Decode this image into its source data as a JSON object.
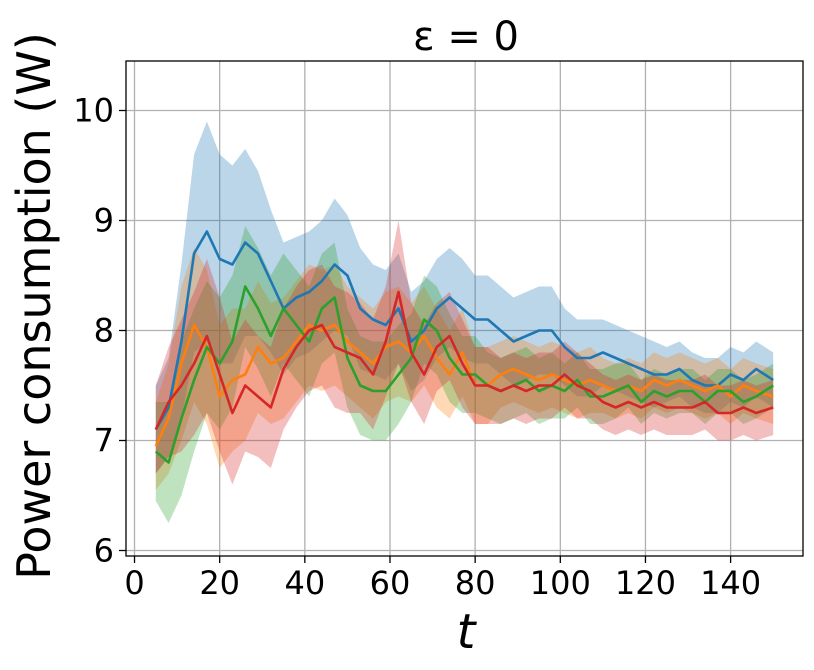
{
  "chart_data": {
    "type": "line",
    "title": "ε = 0",
    "xlabel": "t",
    "ylabel": "Power consumption (W)",
    "xlim": [
      -2,
      157
    ],
    "ylim": [
      5.95,
      10.45
    ],
    "xticks": [
      0,
      20,
      40,
      60,
      80,
      100,
      120,
      140
    ],
    "yticks": [
      6,
      7,
      8,
      9,
      10
    ],
    "grid": true,
    "legend": "none",
    "shaded_band": "min-max range per series (alpha ≈ 0.3)",
    "series": [
      {
        "color": "#1f77b4",
        "x": [
          5,
          8,
          11,
          14,
          17,
          20,
          23,
          26,
          29,
          32,
          35,
          38,
          41,
          44,
          47,
          50,
          53,
          56,
          59,
          62,
          65,
          68,
          71,
          74,
          77,
          80,
          83,
          86,
          89,
          92,
          95,
          98,
          101,
          104,
          107,
          110,
          113,
          116,
          119,
          122,
          125,
          128,
          131,
          134,
          137,
          140,
          143,
          146,
          150
        ],
        "y": [
          7.1,
          7.3,
          7.9,
          8.7,
          8.9,
          8.65,
          8.6,
          8.8,
          8.7,
          8.45,
          8.2,
          8.3,
          8.35,
          8.45,
          8.6,
          8.5,
          8.2,
          8.1,
          8.05,
          8.2,
          7.9,
          8.0,
          8.2,
          8.3,
          8.2,
          8.1,
          8.1,
          8.0,
          7.9,
          7.95,
          8.0,
          8.0,
          7.85,
          7.75,
          7.75,
          7.8,
          7.75,
          7.7,
          7.65,
          7.6,
          7.6,
          7.65,
          7.55,
          7.5,
          7.5,
          7.6,
          7.55,
          7.65,
          7.55
        ],
        "band_half_width": [
          0.4,
          0.45,
          0.7,
          0.9,
          1.0,
          0.95,
          0.9,
          0.85,
          0.75,
          0.65,
          0.6,
          0.55,
          0.55,
          0.55,
          0.6,
          0.55,
          0.55,
          0.5,
          0.5,
          0.5,
          0.45,
          0.45,
          0.45,
          0.45,
          0.45,
          0.4,
          0.4,
          0.4,
          0.4,
          0.4,
          0.4,
          0.4,
          0.35,
          0.35,
          0.35,
          0.3,
          0.3,
          0.3,
          0.3,
          0.3,
          0.25,
          0.25,
          0.25,
          0.25,
          0.25,
          0.25,
          0.25,
          0.25,
          0.25
        ]
      },
      {
        "color": "#ff7f0e",
        "x": [
          5,
          8,
          11,
          14,
          17,
          20,
          23,
          26,
          29,
          32,
          35,
          38,
          41,
          44,
          47,
          50,
          53,
          56,
          59,
          62,
          65,
          68,
          71,
          74,
          77,
          80,
          83,
          86,
          89,
          92,
          95,
          98,
          101,
          104,
          107,
          110,
          113,
          116,
          119,
          122,
          125,
          128,
          131,
          134,
          137,
          140,
          143,
          146,
          150
        ],
        "y": [
          6.95,
          7.2,
          7.7,
          8.05,
          7.85,
          7.4,
          7.55,
          7.6,
          7.85,
          7.7,
          7.75,
          7.9,
          8.05,
          8.0,
          8.05,
          7.9,
          7.8,
          7.7,
          7.85,
          7.9,
          7.8,
          7.95,
          7.75,
          7.6,
          7.8,
          7.5,
          7.5,
          7.6,
          7.65,
          7.6,
          7.55,
          7.6,
          7.55,
          7.5,
          7.55,
          7.5,
          7.45,
          7.5,
          7.45,
          7.55,
          7.5,
          7.55,
          7.5,
          7.45,
          7.5,
          7.4,
          7.5,
          7.45,
          7.4
        ],
        "band_half_width": [
          0.4,
          0.5,
          0.7,
          0.7,
          0.7,
          0.65,
          0.65,
          0.6,
          0.6,
          0.55,
          0.55,
          0.55,
          0.55,
          0.55,
          0.55,
          0.5,
          0.5,
          0.5,
          0.5,
          0.5,
          0.45,
          0.45,
          0.45,
          0.4,
          0.4,
          0.35,
          0.35,
          0.3,
          0.3,
          0.3,
          0.3,
          0.3,
          0.3,
          0.3,
          0.3,
          0.25,
          0.25,
          0.25,
          0.25,
          0.25,
          0.25,
          0.25,
          0.25,
          0.25,
          0.25,
          0.25,
          0.25,
          0.25,
          0.25
        ]
      },
      {
        "color": "#2ca02c",
        "x": [
          5,
          8,
          11,
          14,
          17,
          20,
          23,
          26,
          29,
          32,
          35,
          38,
          41,
          44,
          47,
          50,
          53,
          56,
          59,
          62,
          65,
          68,
          71,
          74,
          77,
          80,
          83,
          86,
          89,
          92,
          95,
          98,
          101,
          104,
          107,
          110,
          113,
          116,
          119,
          122,
          125,
          128,
          131,
          134,
          137,
          140,
          143,
          146,
          150
        ],
        "y": [
          6.9,
          6.8,
          7.2,
          7.55,
          7.85,
          7.7,
          7.9,
          8.4,
          8.2,
          7.95,
          8.2,
          8.05,
          7.9,
          8.2,
          8.3,
          7.75,
          7.5,
          7.45,
          7.45,
          7.6,
          7.75,
          8.1,
          8.0,
          7.75,
          7.6,
          7.6,
          7.5,
          7.45,
          7.5,
          7.55,
          7.45,
          7.5,
          7.45,
          7.55,
          7.4,
          7.4,
          7.45,
          7.5,
          7.35,
          7.45,
          7.4,
          7.45,
          7.45,
          7.35,
          7.45,
          7.45,
          7.35,
          7.4,
          7.5
        ],
        "band_half_width": [
          0.45,
          0.55,
          0.7,
          0.65,
          0.6,
          0.6,
          0.6,
          0.55,
          0.55,
          0.55,
          0.5,
          0.5,
          0.5,
          0.5,
          0.5,
          0.45,
          0.45,
          0.45,
          0.45,
          0.45,
          0.4,
          0.4,
          0.4,
          0.4,
          0.35,
          0.35,
          0.3,
          0.3,
          0.3,
          0.3,
          0.3,
          0.3,
          0.25,
          0.25,
          0.25,
          0.25,
          0.25,
          0.2,
          0.2,
          0.2,
          0.2,
          0.2,
          0.2,
          0.2,
          0.2,
          0.2,
          0.2,
          0.2,
          0.2
        ]
      },
      {
        "color": "#d62728",
        "x": [
          5,
          8,
          11,
          14,
          17,
          20,
          23,
          26,
          29,
          32,
          35,
          38,
          41,
          44,
          47,
          50,
          53,
          56,
          59,
          62,
          65,
          68,
          71,
          74,
          77,
          80,
          83,
          86,
          89,
          92,
          95,
          98,
          101,
          104,
          107,
          110,
          113,
          116,
          119,
          122,
          125,
          128,
          131,
          134,
          137,
          140,
          143,
          146,
          150
        ],
        "y": [
          7.1,
          7.35,
          7.5,
          7.7,
          7.95,
          7.6,
          7.25,
          7.5,
          7.4,
          7.3,
          7.65,
          7.85,
          8.0,
          8.05,
          7.85,
          7.8,
          7.75,
          7.6,
          7.9,
          8.35,
          7.8,
          7.6,
          7.85,
          7.95,
          7.7,
          7.5,
          7.5,
          7.45,
          7.5,
          7.45,
          7.5,
          7.5,
          7.6,
          7.5,
          7.45,
          7.35,
          7.3,
          7.35,
          7.3,
          7.35,
          7.3,
          7.3,
          7.3,
          7.35,
          7.25,
          7.25,
          7.3,
          7.25,
          7.3
        ],
        "band_half_width": [
          0.4,
          0.5,
          0.6,
          0.65,
          0.7,
          0.7,
          0.65,
          0.6,
          0.55,
          0.55,
          0.55,
          0.55,
          0.55,
          0.55,
          0.55,
          0.55,
          0.5,
          0.5,
          0.5,
          0.65,
          0.45,
          0.45,
          0.4,
          0.4,
          0.4,
          0.35,
          0.35,
          0.3,
          0.3,
          0.3,
          0.3,
          0.3,
          0.3,
          0.3,
          0.25,
          0.25,
          0.25,
          0.25,
          0.25,
          0.25,
          0.25,
          0.25,
          0.25,
          0.25,
          0.25,
          0.25,
          0.25,
          0.25,
          0.25
        ]
      }
    ]
  }
}
